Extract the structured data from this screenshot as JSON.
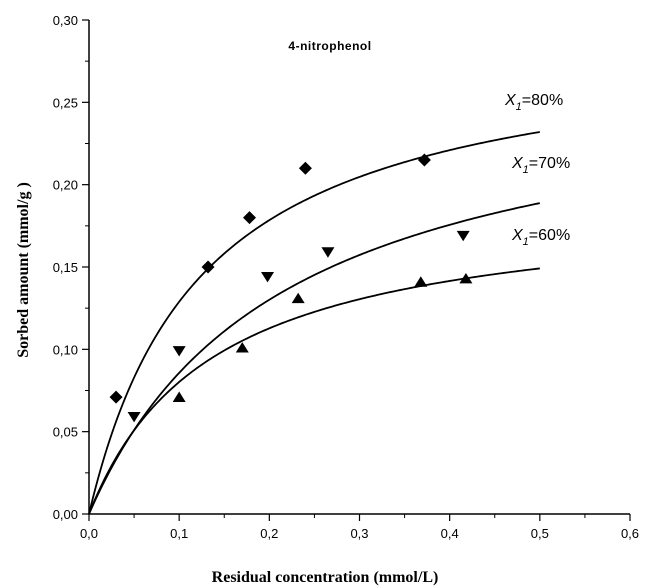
{
  "chart_data": {
    "type": "scatter",
    "title": "4-nitrophenol",
    "xlabel": "Residual concentration (mmol/L)",
    "ylabel": "Sorbed amount     (mmol/g  )",
    "xlim": [
      0,
      0.6
    ],
    "ylim": [
      0,
      0.3
    ],
    "xticks": [
      "0,0",
      "0,1",
      "0,2",
      "0,3",
      "0,4",
      "0,5",
      "0,6"
    ],
    "yticks": [
      "0,00",
      "0,05",
      "0,10",
      "0,15",
      "0,20",
      "0,25",
      "0,30"
    ],
    "grid": false,
    "series": [
      {
        "label_var": "X",
        "label_sub": "1",
        "label_rest": "=80%",
        "marker": "diamond",
        "points": [
          [
            0.03,
            0.071
          ],
          [
            0.132,
            0.15
          ],
          [
            0.178,
            0.18
          ],
          [
            0.24,
            0.21
          ],
          [
            0.372,
            0.215
          ]
        ],
        "fit": {
          "qmax": 0.29,
          "K": 0.125
        }
      },
      {
        "label_var": "X",
        "label_sub": "1",
        "label_rest": "=70%",
        "marker": "triangle-down",
        "points": [
          [
            0.05,
            0.059
          ],
          [
            0.1,
            0.099
          ],
          [
            0.198,
            0.144
          ],
          [
            0.265,
            0.159
          ],
          [
            0.415,
            0.169
          ]
        ],
        "fit": {
          "qmax": 0.27,
          "K": 0.215
        }
      },
      {
        "label_var": "X",
        "label_sub": "1",
        "label_rest": "=60%",
        "marker": "triangle-up",
        "points": [
          [
            0.1,
            0.071
          ],
          [
            0.17,
            0.101
          ],
          [
            0.232,
            0.131
          ],
          [
            0.368,
            0.141
          ],
          [
            0.418,
            0.143
          ]
        ],
        "fit": {
          "qmax": 0.19,
          "K": 0.137
        }
      }
    ]
  }
}
